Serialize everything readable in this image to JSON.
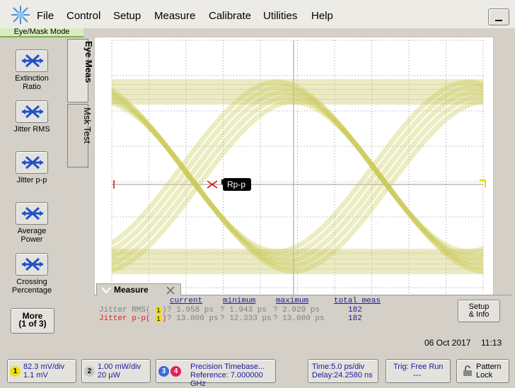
{
  "menu": [
    "File",
    "Control",
    "Setup",
    "Measure",
    "Calibrate",
    "Utilities",
    "Help"
  ],
  "mode": "Eye/Mask Mode",
  "tabs": [
    "Eye Meas",
    "Msk Test"
  ],
  "buttons": [
    [
      "Extinction",
      "Ratio"
    ],
    [
      "Jitter RMS"
    ],
    [
      "Jitter p-p"
    ],
    [
      "Average",
      "Power"
    ],
    [
      "Crossing",
      "Percentage"
    ]
  ],
  "more": [
    "More",
    "(1 of 3)"
  ],
  "marker": "Rp-p",
  "measure": {
    "title": "Measure",
    "headers": [
      "current",
      "minimum",
      "maximum",
      "total meas"
    ],
    "rows": [
      {
        "name": "Jitter RMS(",
        "channel": "1",
        "close": ")",
        "cells": [
          "? 1.958 ps",
          "? 1.943 ps",
          "? 2.029 ps",
          "182"
        ]
      },
      {
        "name": "Jitter p-p(",
        "channel": "1",
        "close": ")",
        "cells": [
          "? 13.000 ps",
          "? 12.333 ps",
          "? 13.000 ps",
          "182"
        ]
      }
    ],
    "setup": [
      "Setup",
      "& Info"
    ]
  },
  "date": "06 Oct 2017",
  "time": "11:13",
  "status": {
    "ch1": {
      "number": "1",
      "lines": [
        "82.3 mV/div",
        "1.1 mV"
      ]
    },
    "ch2": {
      "number": "2",
      "lines": [
        "1.00 mW/div",
        "20 µW"
      ]
    },
    "timebase": {
      "numbers": [
        "3",
        "4"
      ],
      "lines": [
        "Precision Timebase...",
        "Reference: 7.000000 GHz"
      ]
    },
    "time": [
      "Time:5.0 ps/div",
      "Delay:24.2580 ns"
    ],
    "trigger": [
      "Trig: Free Run",
      "---"
    ],
    "pattern": [
      "Pattern",
      "Lock"
    ]
  }
}
